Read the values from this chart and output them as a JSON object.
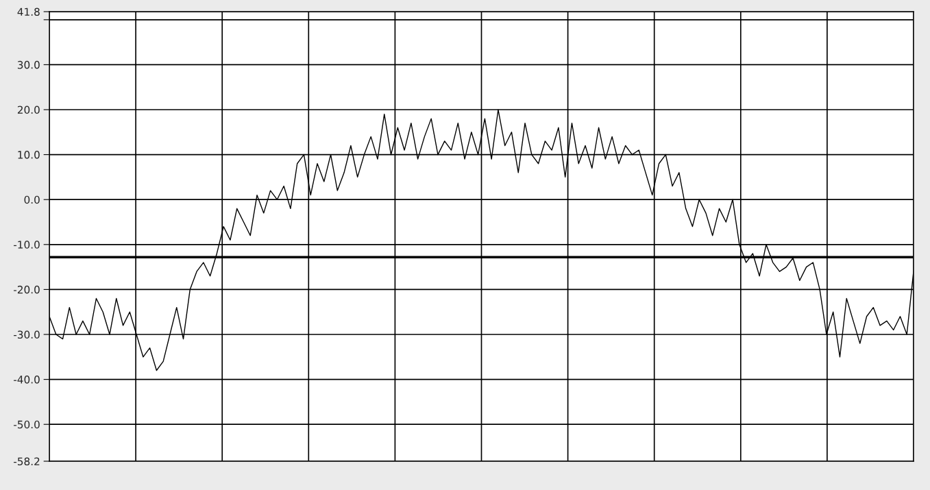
{
  "chart_data": {
    "type": "line",
    "categories": [
      null,
      null,
      null,
      null,
      null,
      null,
      null,
      null,
      null,
      null,
      null,
      null,
      null,
      null,
      null,
      null,
      null,
      null,
      null,
      null,
      null,
      null,
      null,
      null,
      null,
      null,
      null,
      null,
      null,
      null,
      null,
      null,
      null,
      null,
      null,
      null,
      null,
      null,
      null,
      null,
      null,
      null,
      null,
      null,
      null,
      null,
      null,
      null,
      null,
      null,
      null,
      null,
      null,
      null,
      null,
      null,
      null,
      null,
      null,
      null,
      null,
      null,
      null,
      null,
      null,
      null,
      null,
      null,
      null,
      null,
      null,
      null,
      null,
      null,
      null,
      null,
      null,
      null,
      null,
      null,
      null,
      null,
      null,
      null,
      null,
      null,
      null,
      null,
      null,
      null,
      null,
      null,
      null,
      null,
      null,
      null,
      null,
      null,
      null,
      null,
      null,
      null,
      null,
      null,
      null,
      null,
      null,
      null,
      null,
      null,
      null,
      null,
      null,
      null,
      null,
      null,
      null,
      null,
      null,
      null,
      null,
      null,
      null,
      null,
      null,
      null,
      null,
      null,
      null,
      null
    ],
    "series": [
      {
        "color": "#000000",
        "values": [
          -26,
          -30,
          -31,
          -24,
          -30,
          -27,
          -30,
          -22,
          -25,
          -30,
          -22,
          -28,
          -25,
          -30,
          -35,
          -33,
          -38,
          -36,
          -30,
          -24,
          -31,
          -20,
          -16,
          -14,
          -17,
          -12,
          -6,
          -9,
          -2,
          -5,
          -8,
          1,
          -3,
          2,
          0,
          3,
          -2,
          8,
          10,
          1,
          8,
          4,
          10,
          2,
          6,
          12,
          5,
          10,
          14,
          9,
          19,
          10,
          16,
          11,
          17,
          9,
          14,
          18,
          10,
          13,
          11,
          17,
          9,
          15,
          10,
          18,
          9,
          20,
          12,
          15,
          6,
          17,
          10,
          8,
          13,
          11,
          16,
          5,
          17,
          8,
          12,
          7,
          16,
          9,
          14,
          8,
          12,
          10,
          11,
          6,
          1,
          8,
          10,
          3,
          6,
          -2,
          -6,
          0,
          -3,
          -8,
          -2,
          -5,
          0,
          -10,
          -14,
          -12,
          -17,
          -10,
          -14,
          -16,
          -15,
          -13,
          -18,
          -15,
          -14,
          -20,
          -30,
          -25,
          -35,
          -22,
          -27,
          -32,
          -26,
          -24,
          -28,
          -27,
          -29,
          -26,
          -30,
          -16
        ]
      }
    ],
    "ylim": [
      -58.2,
      41.8
    ],
    "yticks": [
      41.8,
      {
        "value": 40,
        "label": null
      },
      {
        "value": 30,
        "label": "30.0"
      },
      {
        "value": 20,
        "label": "20.0"
      },
      {
        "value": 10,
        "label": "10.0"
      },
      {
        "value": 0,
        "label": "0.0"
      },
      {
        "value": -10,
        "label": "-10.0"
      },
      {
        "value": -20,
        "label": "-20.0"
      },
      {
        "value": -30,
        "label": "-30.0"
      },
      {
        "value": -40,
        "label": "-40.0"
      },
      {
        "value": -50,
        "label": "-50.0"
      },
      -58.2
    ],
    "ref_lines": [
      {
        "axis": "y",
        "value": -12.8,
        "color": "#000000"
      }
    ],
    "grid": true,
    "marker": "none",
    "line_style": "solid"
  }
}
